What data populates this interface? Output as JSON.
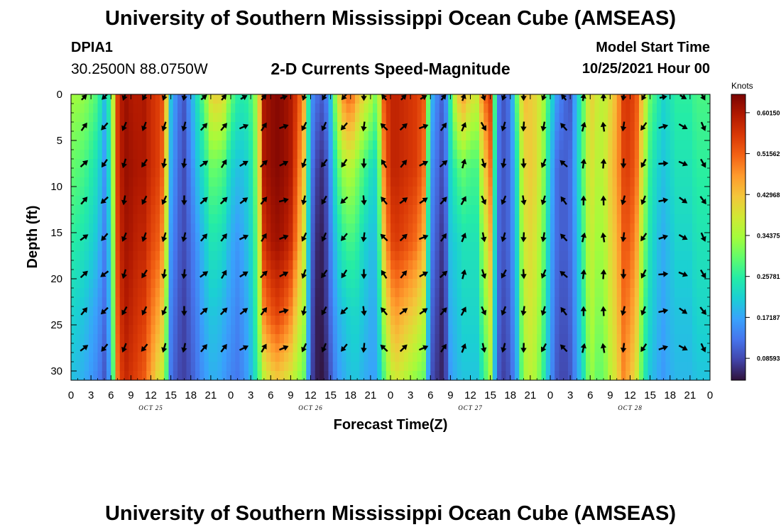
{
  "header": {
    "title": "University of Southern Mississippi Ocean Cube (AMSEAS)",
    "station_id": "DPIA1",
    "station_coords": "30.2500N  88.0750W",
    "plot_title": "2-D Currents Speed-Magnitude",
    "model_start_label": "Model Start Time",
    "model_start_value": "10/25/2021 Hour 00"
  },
  "footer": {
    "title": "University of Southern Mississippi Ocean Cube (AMSEAS)"
  },
  "chart_data": {
    "type": "heatmap",
    "title": "2-D Currents Speed-Magnitude",
    "xlabel": "Forecast Time(Z)",
    "ylabel": "Depth (ft)",
    "x_ticks": [
      "0",
      "3",
      "6",
      "9",
      "12",
      "15",
      "18",
      "21",
      "0",
      "3",
      "6",
      "9",
      "12",
      "15",
      "18",
      "21",
      "0",
      "3",
      "6",
      "9",
      "12",
      "15",
      "18",
      "21",
      "0",
      "3",
      "6",
      "9",
      "12",
      "15",
      "18",
      "21",
      "0"
    ],
    "day_labels": [
      {
        "label": "OCT 25",
        "hour": 12
      },
      {
        "label": "OCT 26",
        "hour": 36
      },
      {
        "label": "OCT 27",
        "hour": 60
      },
      {
        "label": "OCT 28",
        "hour": 84
      }
    ],
    "xlim": [
      0,
      96
    ],
    "ylim": [
      0,
      31
    ],
    "y_ticks": [
      "0",
      "5",
      "10",
      "15",
      "20",
      "25",
      "30"
    ],
    "colorbar": {
      "title": "Knots",
      "min": 0.04,
      "max": 0.64,
      "tick_values": [
        0.6015,
        0.51562,
        0.42968,
        0.34375,
        0.25781,
        0.17187,
        0.08593
      ],
      "tick_labels": [
        "0.60150",
        "0.51562",
        "0.42968",
        "0.34375",
        "0.25781",
        "0.17187",
        "0.08593"
      ],
      "colors": [
        "#30123b",
        "#4145ab",
        "#4675ed",
        "#39a2fc",
        "#1bcfd4",
        "#24eca6",
        "#61fc6c",
        "#a4fc3b",
        "#d1e834",
        "#f3c63a",
        "#fe9b2d",
        "#f36315",
        "#d93806",
        "#b11901",
        "#7a0402"
      ]
    },
    "speed_profile": {
      "hours": [
        0,
        2,
        4,
        5,
        6,
        7,
        8,
        9,
        10,
        11,
        12,
        13,
        14,
        15,
        16,
        17,
        18,
        19,
        20,
        21,
        22,
        23,
        24,
        25,
        26,
        27,
        28,
        29,
        30,
        31,
        32,
        33,
        34,
        35,
        36,
        37,
        38,
        39,
        40,
        41,
        42,
        43,
        44,
        45,
        46,
        47,
        48,
        49,
        50,
        51,
        52,
        53,
        54,
        55,
        56,
        57,
        58,
        59,
        60,
        61,
        62,
        63,
        64,
        65,
        66,
        67,
        68,
        69,
        70,
        71,
        72,
        73,
        74,
        75,
        76,
        77,
        78,
        79,
        80,
        81,
        82,
        83,
        84,
        85,
        86,
        87,
        88,
        89,
        90,
        91,
        92,
        93,
        94,
        96
      ],
      "depths": [
        0,
        8,
        16,
        24,
        31
      ],
      "speed_knots": [
        [
          0.34,
          0.33,
          0.28,
          0.2,
          0.28,
          0.55,
          0.62,
          0.6,
          0.59,
          0.6,
          0.57,
          0.55,
          0.52,
          0.2,
          0.13,
          0.1,
          0.17,
          0.24,
          0.3,
          0.4,
          0.42,
          0.39,
          0.3,
          0.26,
          0.25,
          0.28,
          0.35,
          0.6,
          0.62,
          0.63,
          0.62,
          0.6,
          0.55,
          0.45,
          0.16,
          0.12,
          0.1,
          0.2,
          0.38,
          0.48,
          0.52,
          0.45,
          0.4,
          0.36,
          0.3,
          0.52,
          0.58,
          0.58,
          0.57,
          0.56,
          0.55,
          0.52,
          0.2,
          0.14,
          0.1,
          0.26,
          0.42,
          0.46,
          0.4,
          0.38,
          0.5,
          0.55,
          0.14,
          0.1,
          0.13,
          0.3,
          0.44,
          0.42,
          0.4,
          0.34,
          0.24,
          0.16,
          0.12,
          0.1,
          0.2,
          0.3,
          0.42,
          0.38,
          0.36,
          0.4,
          0.45,
          0.55,
          0.56,
          0.52,
          0.4,
          0.3,
          0.26,
          0.22,
          0.24,
          0.26,
          0.26,
          0.26,
          0.28,
          0.28
        ],
        [
          0.3,
          0.28,
          0.23,
          0.16,
          0.25,
          0.55,
          0.62,
          0.61,
          0.6,
          0.6,
          0.57,
          0.55,
          0.5,
          0.18,
          0.12,
          0.09,
          0.14,
          0.2,
          0.24,
          0.3,
          0.3,
          0.28,
          0.22,
          0.2,
          0.2,
          0.24,
          0.33,
          0.6,
          0.62,
          0.63,
          0.62,
          0.6,
          0.52,
          0.42,
          0.14,
          0.08,
          0.06,
          0.16,
          0.28,
          0.34,
          0.36,
          0.32,
          0.28,
          0.24,
          0.22,
          0.48,
          0.58,
          0.58,
          0.57,
          0.56,
          0.55,
          0.5,
          0.16,
          0.12,
          0.08,
          0.22,
          0.28,
          0.3,
          0.28,
          0.28,
          0.4,
          0.5,
          0.13,
          0.1,
          0.12,
          0.24,
          0.4,
          0.42,
          0.4,
          0.32,
          0.2,
          0.12,
          0.1,
          0.12,
          0.2,
          0.3,
          0.4,
          0.36,
          0.36,
          0.42,
          0.46,
          0.54,
          0.55,
          0.5,
          0.36,
          0.26,
          0.22,
          0.2,
          0.22,
          0.24,
          0.24,
          0.24,
          0.26,
          0.26
        ],
        [
          0.26,
          0.24,
          0.2,
          0.14,
          0.22,
          0.54,
          0.61,
          0.6,
          0.58,
          0.58,
          0.54,
          0.52,
          0.46,
          0.16,
          0.11,
          0.09,
          0.12,
          0.16,
          0.2,
          0.24,
          0.24,
          0.22,
          0.18,
          0.16,
          0.18,
          0.22,
          0.3,
          0.56,
          0.6,
          0.61,
          0.6,
          0.57,
          0.48,
          0.38,
          0.12,
          0.06,
          0.05,
          0.14,
          0.22,
          0.26,
          0.28,
          0.26,
          0.22,
          0.2,
          0.2,
          0.42,
          0.54,
          0.55,
          0.54,
          0.52,
          0.5,
          0.44,
          0.14,
          0.1,
          0.06,
          0.2,
          0.22,
          0.24,
          0.24,
          0.24,
          0.34,
          0.44,
          0.12,
          0.1,
          0.12,
          0.22,
          0.38,
          0.4,
          0.38,
          0.3,
          0.18,
          0.12,
          0.1,
          0.12,
          0.18,
          0.28,
          0.38,
          0.34,
          0.34,
          0.4,
          0.44,
          0.52,
          0.52,
          0.46,
          0.32,
          0.24,
          0.2,
          0.18,
          0.2,
          0.22,
          0.22,
          0.22,
          0.24,
          0.24
        ],
        [
          0.22,
          0.2,
          0.16,
          0.12,
          0.2,
          0.52,
          0.6,
          0.58,
          0.56,
          0.55,
          0.5,
          0.46,
          0.4,
          0.14,
          0.1,
          0.08,
          0.11,
          0.14,
          0.18,
          0.2,
          0.2,
          0.18,
          0.16,
          0.14,
          0.16,
          0.2,
          0.28,
          0.48,
          0.52,
          0.54,
          0.52,
          0.48,
          0.4,
          0.34,
          0.1,
          0.05,
          0.05,
          0.12,
          0.18,
          0.2,
          0.22,
          0.22,
          0.2,
          0.18,
          0.18,
          0.34,
          0.44,
          0.46,
          0.44,
          0.42,
          0.4,
          0.36,
          0.12,
          0.08,
          0.05,
          0.18,
          0.2,
          0.22,
          0.22,
          0.22,
          0.3,
          0.38,
          0.12,
          0.09,
          0.11,
          0.2,
          0.36,
          0.38,
          0.36,
          0.28,
          0.17,
          0.11,
          0.09,
          0.11,
          0.17,
          0.26,
          0.36,
          0.32,
          0.32,
          0.38,
          0.42,
          0.5,
          0.48,
          0.42,
          0.28,
          0.22,
          0.19,
          0.17,
          0.19,
          0.2,
          0.2,
          0.2,
          0.22,
          0.22
        ],
        [
          0.2,
          0.18,
          0.14,
          0.1,
          0.18,
          0.5,
          0.58,
          0.56,
          0.54,
          0.52,
          0.46,
          0.4,
          0.36,
          0.13,
          0.09,
          0.08,
          0.1,
          0.13,
          0.16,
          0.18,
          0.18,
          0.16,
          0.14,
          0.13,
          0.15,
          0.19,
          0.26,
          0.36,
          0.4,
          0.42,
          0.4,
          0.38,
          0.34,
          0.3,
          0.09,
          0.05,
          0.04,
          0.1,
          0.16,
          0.18,
          0.2,
          0.2,
          0.18,
          0.17,
          0.17,
          0.28,
          0.36,
          0.38,
          0.36,
          0.34,
          0.32,
          0.3,
          0.1,
          0.07,
          0.05,
          0.16,
          0.19,
          0.2,
          0.2,
          0.2,
          0.26,
          0.34,
          0.11,
          0.08,
          0.1,
          0.18,
          0.34,
          0.36,
          0.34,
          0.26,
          0.16,
          0.1,
          0.08,
          0.1,
          0.16,
          0.24,
          0.34,
          0.3,
          0.3,
          0.36,
          0.4,
          0.48,
          0.44,
          0.38,
          0.26,
          0.2,
          0.18,
          0.16,
          0.18,
          0.19,
          0.19,
          0.19,
          0.2,
          0.2
        ]
      ]
    },
    "vectors": {
      "hours": [
        2,
        5,
        8,
        11,
        14,
        17,
        20,
        23,
        26,
        29,
        32,
        35,
        38,
        41,
        44,
        47,
        50,
        53,
        56,
        59,
        62,
        65,
        68,
        71,
        74,
        77,
        80,
        83,
        86,
        89,
        92,
        95
      ],
      "depths": [
        3.5,
        7.5,
        11.5,
        15.5,
        19.5,
        23.5,
        27.5
      ],
      "top_row_depth": 0.3,
      "directions_deg": [
        45,
        225,
        200,
        210,
        200,
        190,
        50,
        40,
        60,
        40,
        70,
        200,
        210,
        220,
        180,
        320,
        45,
        60,
        40,
        20,
        160,
        200,
        180,
        200,
        320,
        10,
        0,
        190,
        210,
        80,
        120,
        150
      ]
    }
  }
}
